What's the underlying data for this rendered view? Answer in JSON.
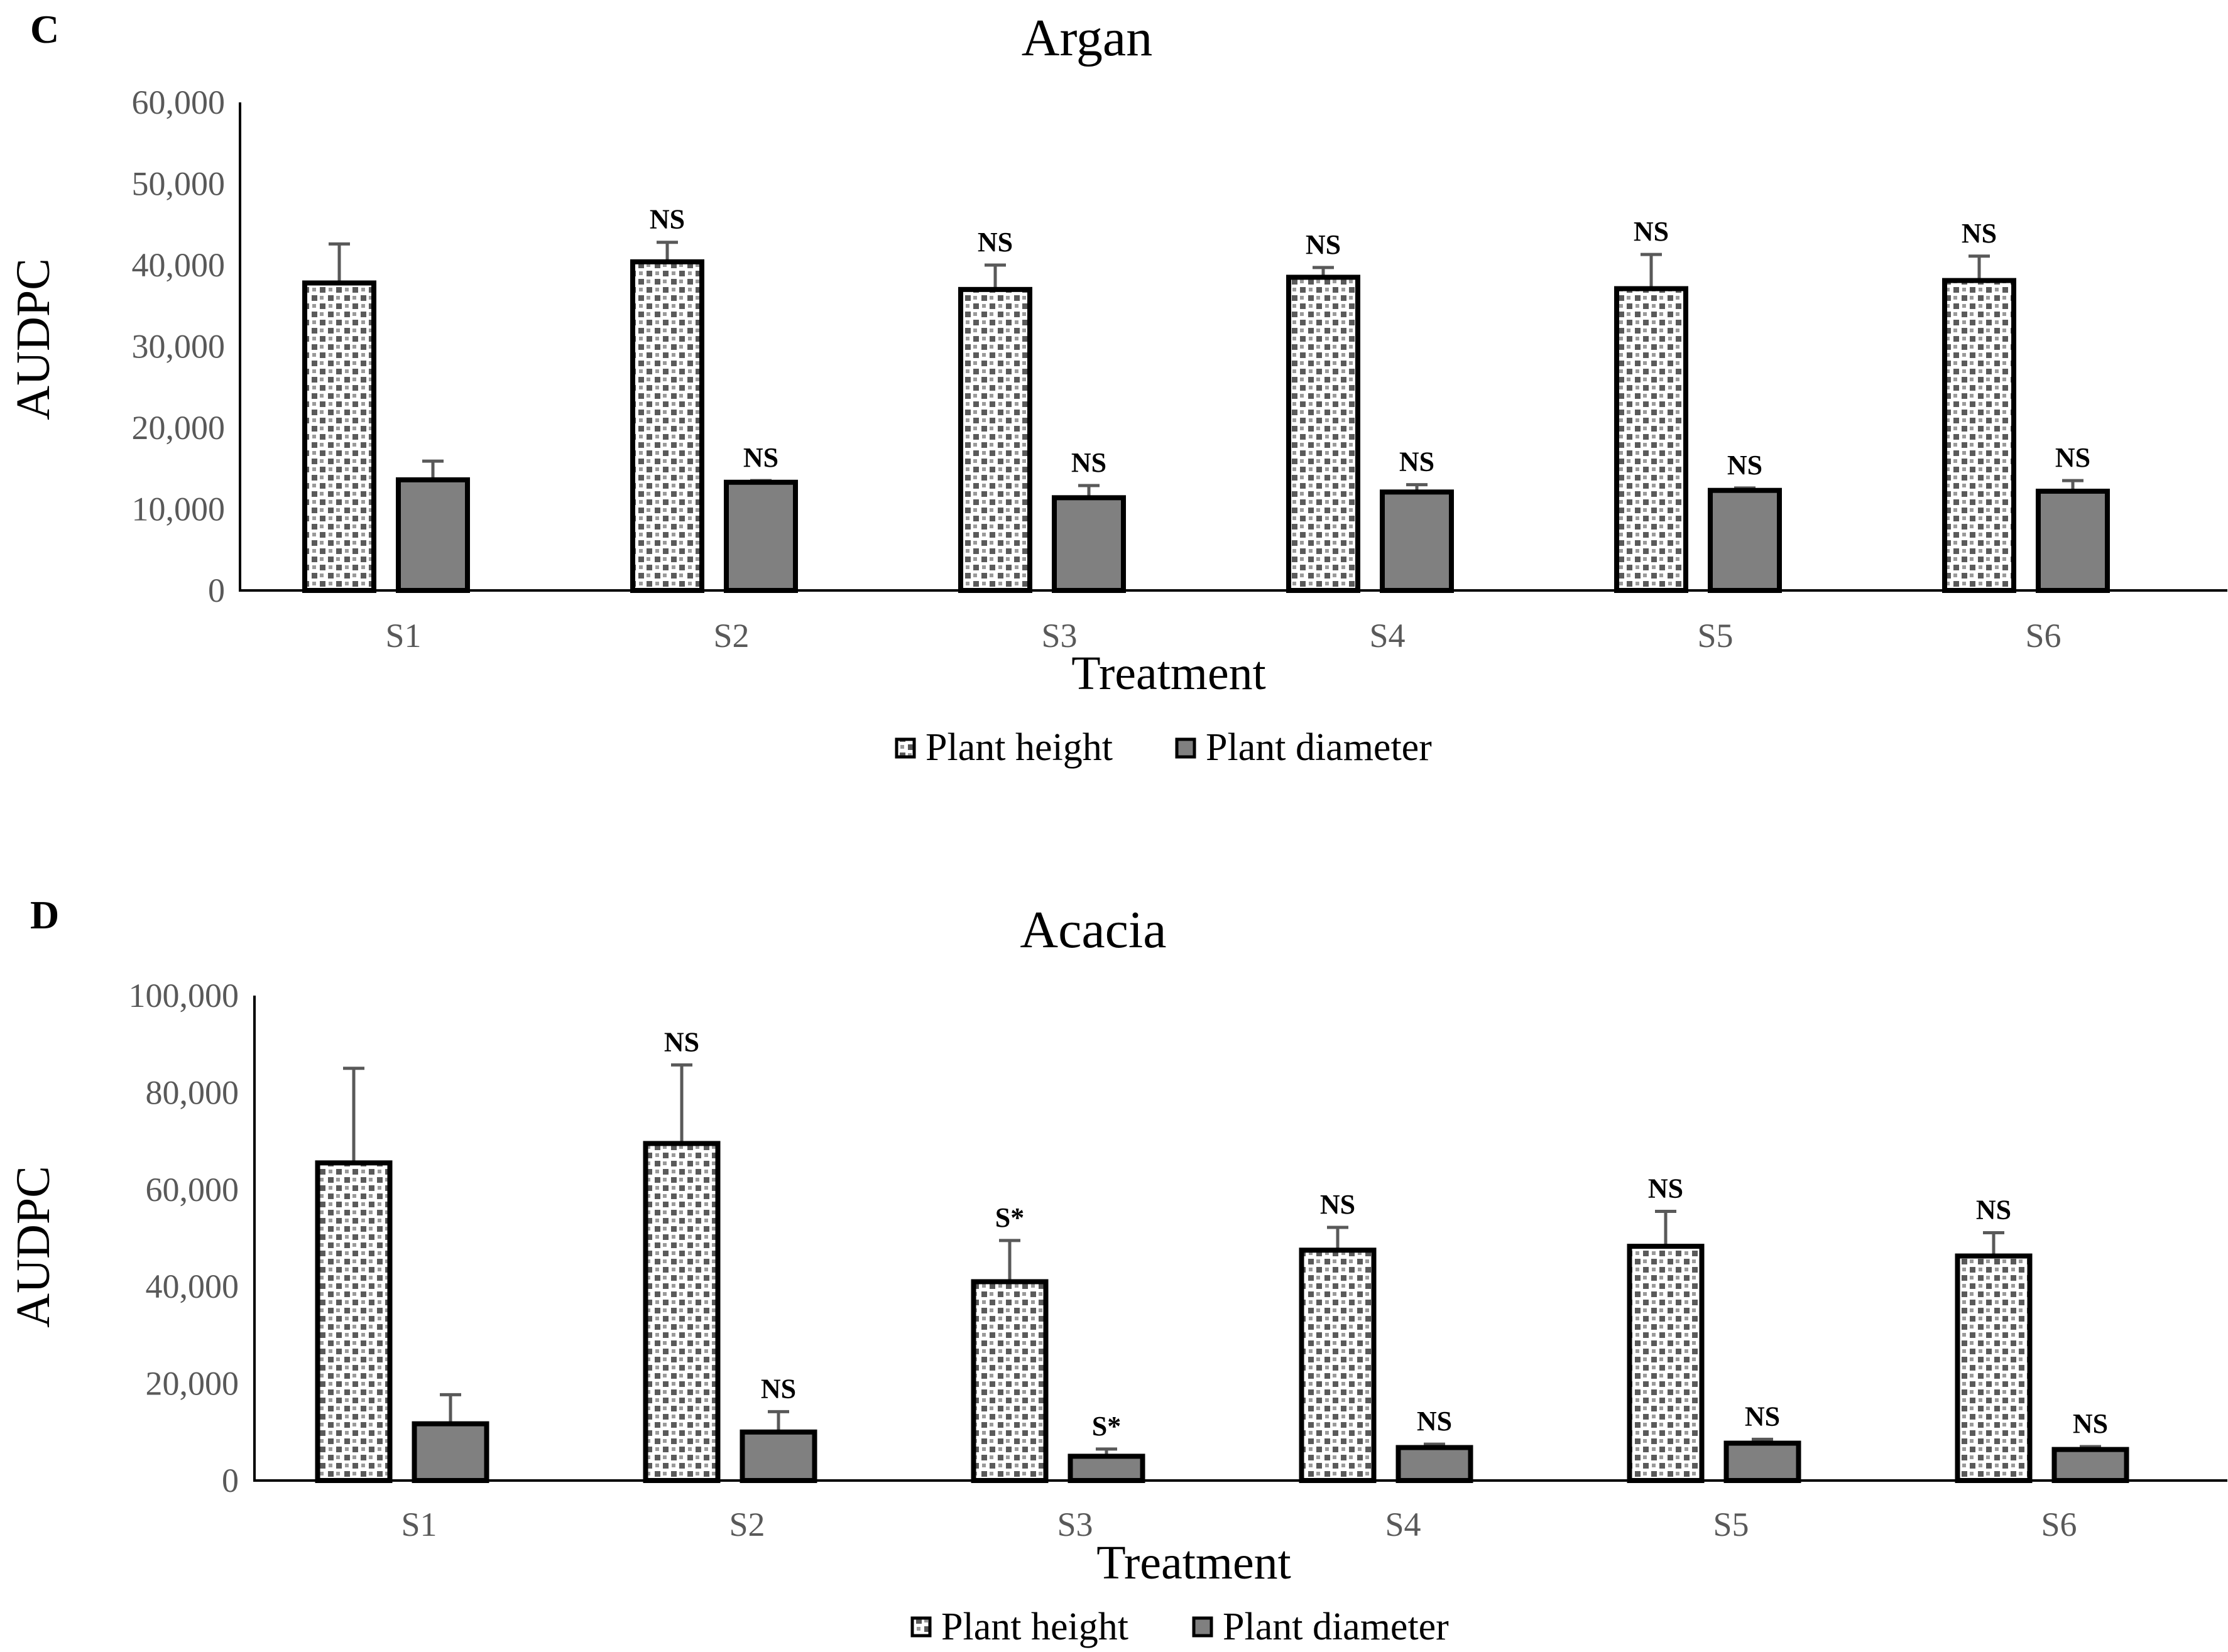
{
  "chart_data": [
    {
      "panel_label": "C",
      "type": "bar",
      "title": "Argan",
      "xlabel": "Treatment",
      "ylabel": "AUDPC",
      "ylim": [
        0,
        60000
      ],
      "yticks": [
        0,
        10000,
        20000,
        30000,
        40000,
        50000,
        60000
      ],
      "ytick_labels": [
        "0",
        "10,000",
        "20,000",
        "30,000",
        "40,000",
        "50,000",
        "60,000"
      ],
      "categories": [
        "S1",
        "S2",
        "S3",
        "S4",
        "S5",
        "S6"
      ],
      "legend_position": "bottom-center",
      "series": [
        {
          "name": "Plant height",
          "pattern": "checkered",
          "values": [
            37800,
            40400,
            37000,
            38500,
            37100,
            38100
          ],
          "errors": [
            4800,
            2400,
            3000,
            1200,
            4200,
            3000
          ],
          "annotations": [
            "",
            "NS",
            "NS",
            "NS",
            "NS",
            "NS"
          ]
        },
        {
          "name": "Plant diameter",
          "pattern": "solid",
          "values": [
            13600,
            13300,
            11400,
            12100,
            12300,
            12200
          ],
          "errors": [
            2300,
            200,
            1500,
            900,
            300,
            1300
          ],
          "annotations": [
            "",
            "NS",
            "NS",
            "NS",
            "NS",
            "NS"
          ]
        }
      ]
    },
    {
      "panel_label": "D",
      "type": "bar",
      "title": "Acacia",
      "xlabel": "Treatment",
      "ylabel": "AUDPC",
      "ylim": [
        0,
        100000
      ],
      "yticks": [
        0,
        20000,
        40000,
        60000,
        80000,
        100000
      ],
      "ytick_labels": [
        "0",
        "20,000",
        "40,000",
        "60,000",
        "80,000",
        "100,000"
      ],
      "categories": [
        "S1",
        "S2",
        "S3",
        "S4",
        "S5",
        "S6"
      ],
      "legend_position": "bottom-center",
      "series": [
        {
          "name": "Plant height",
          "pattern": "checkered",
          "values": [
            65500,
            69500,
            41000,
            47500,
            48300,
            46300
          ],
          "errors": [
            19500,
            16200,
            8500,
            4700,
            7200,
            4800
          ],
          "annotations": [
            "",
            "NS",
            "S*",
            "NS",
            "NS",
            "NS"
          ]
        },
        {
          "name": "Plant diameter",
          "pattern": "solid",
          "values": [
            11700,
            10000,
            5000,
            6800,
            7700,
            6400
          ],
          "errors": [
            6000,
            4200,
            1500,
            700,
            800,
            600
          ],
          "annotations": [
            "",
            "NS",
            "S*",
            "NS",
            "NS",
            "NS"
          ]
        }
      ]
    }
  ],
  "colors": {
    "bar_outline": "#000000",
    "solid_fill": "#808080",
    "pattern_dark": "#5a5a5a",
    "pattern_light": "#ffffff",
    "tick_text": "#595959",
    "axis": "#000000"
  }
}
